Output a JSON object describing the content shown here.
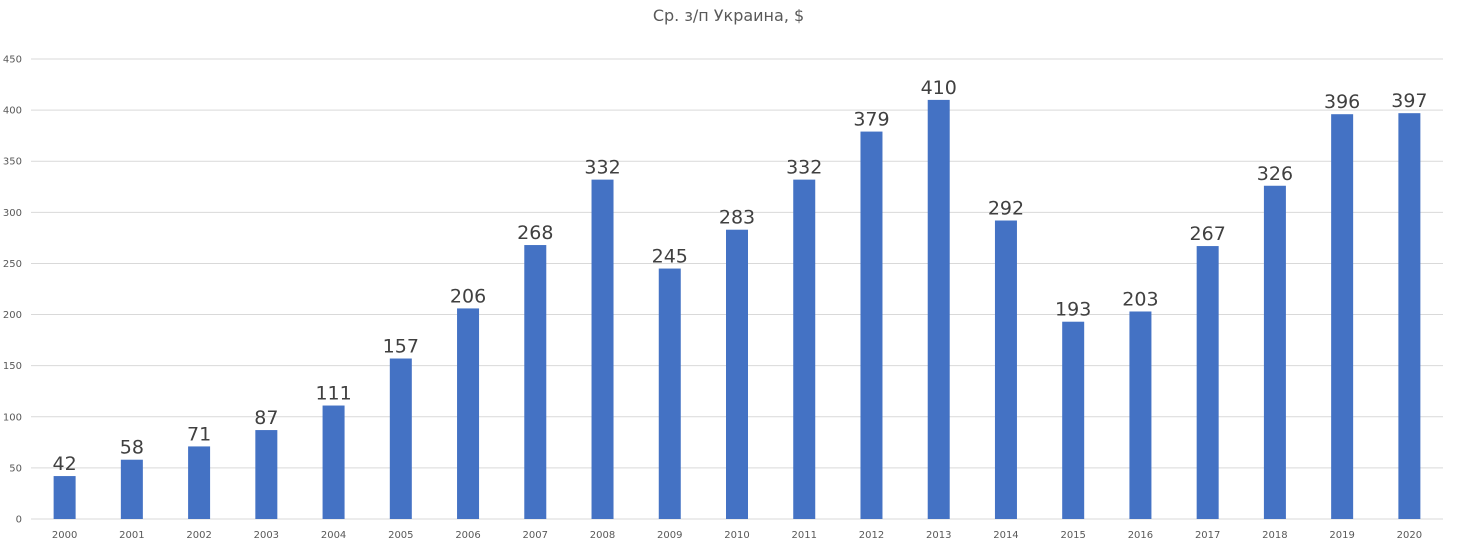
{
  "chart_data": {
    "type": "bar",
    "title": "Ср. з/п Украина, $",
    "categories": [
      "2000",
      "2001",
      "2002",
      "2003",
      "2004",
      "2005",
      "2006",
      "2007",
      "2008",
      "2009",
      "2010",
      "2011",
      "2012",
      "2013",
      "2014",
      "2015",
      "2016",
      "2017",
      "2018",
      "2019",
      "2020"
    ],
    "values": [
      42,
      58,
      71,
      87,
      111,
      157,
      206,
      268,
      332,
      245,
      283,
      332,
      379,
      410,
      292,
      193,
      203,
      267,
      326,
      396,
      397
    ],
    "ylim": [
      0,
      450
    ],
    "yticks": [
      0,
      50,
      100,
      150,
      200,
      250,
      300,
      350,
      400,
      450
    ],
    "grid": true,
    "legend": "none",
    "colors": {
      "bar": "#4472C4"
    }
  }
}
